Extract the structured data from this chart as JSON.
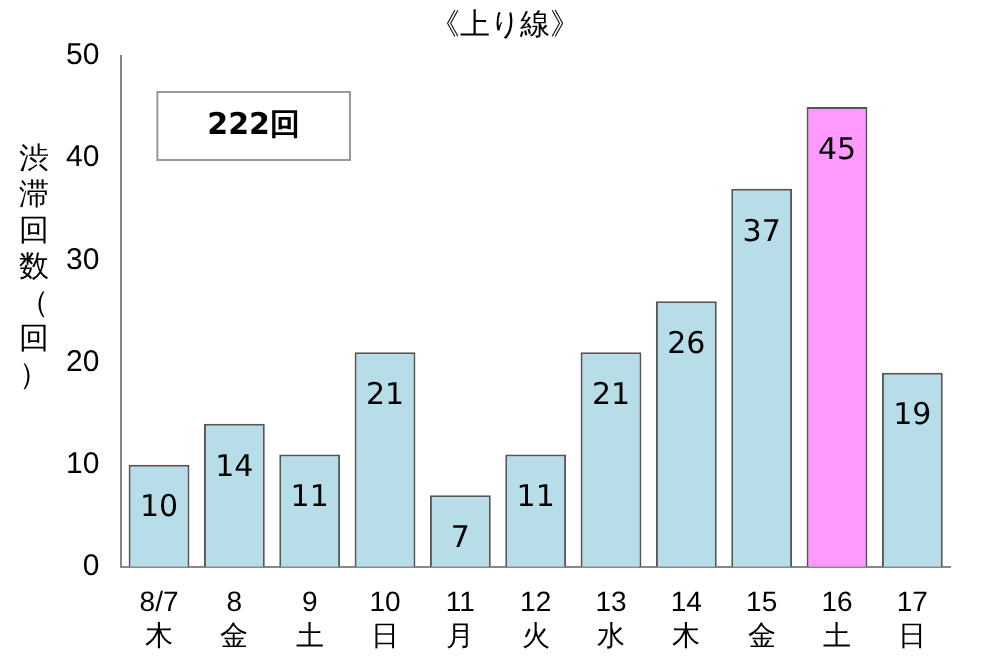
{
  "chart_data": {
    "type": "bar",
    "title": "《上り線》",
    "ylabel": "渋滞回数（回）",
    "categories": [
      "8/7\n木",
      "8\n金",
      "9\n土",
      "10\n日",
      "11\n月",
      "12\n火",
      "13\n水",
      "14\n木",
      "15\n金",
      "16\n土",
      "17\n日"
    ],
    "values": [
      10,
      14,
      11,
      21,
      7,
      11,
      21,
      26,
      37,
      45,
      19
    ],
    "colors": [
      "#b7dde8",
      "#b7dde8",
      "#b7dde8",
      "#b7dde8",
      "#b7dde8",
      "#b7dde8",
      "#b7dde8",
      "#b7dde8",
      "#b7dde8",
      "#ff99ff",
      "#b7dde8"
    ],
    "ylim": [
      0,
      50
    ],
    "yticks": [
      0,
      10,
      20,
      30,
      40,
      50
    ],
    "grid": false,
    "legend": false,
    "data_labels": true,
    "annotations": [
      "222回"
    ]
  }
}
